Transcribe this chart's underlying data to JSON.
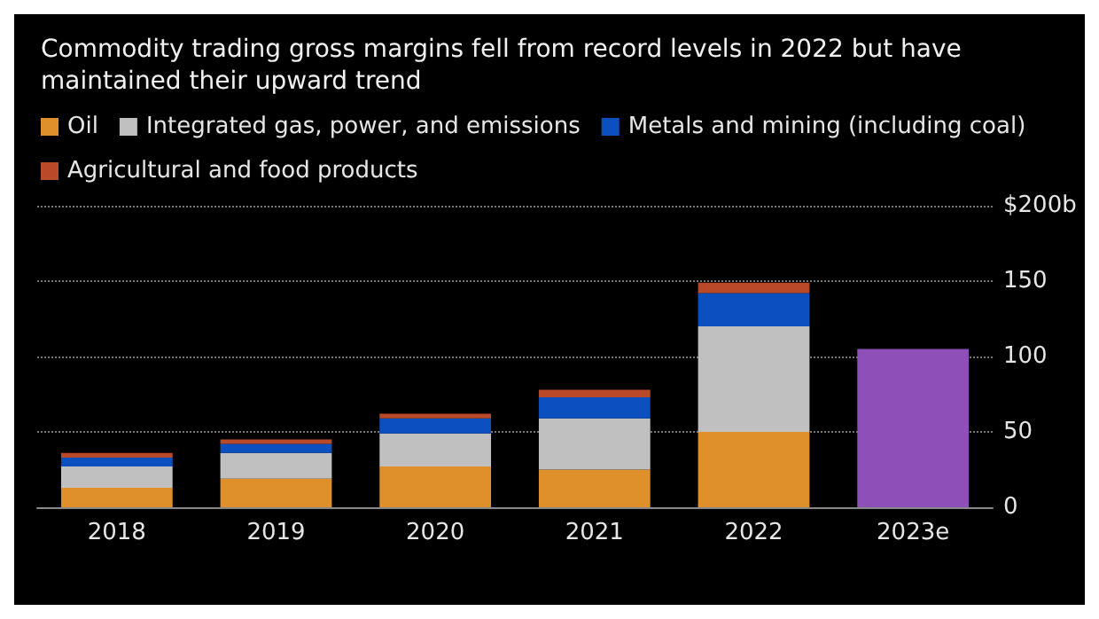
{
  "chart_data": {
    "type": "bar",
    "title": "Commodity trading gross margins fell from record levels in 2022 but have maintained their upward trend",
    "categories": [
      "2018",
      "2019",
      "2020",
      "2021",
      "2022",
      "2023e"
    ],
    "stacked": true,
    "series": [
      {
        "name": "Oil",
        "color": "#e0902a",
        "values": [
          13,
          19,
          27,
          25,
          50,
          null
        ]
      },
      {
        "name": "Integrated gas, power, and emissions",
        "color": "#c0c0c0",
        "values": [
          14,
          17,
          22,
          34,
          70,
          null
        ]
      },
      {
        "name": "Metals and mining (including coal)",
        "color": "#0c50c0",
        "values": [
          6,
          6,
          10,
          14,
          22,
          null
        ]
      },
      {
        "name": "Agricultural and food products",
        "color": "#b84a2a",
        "values": [
          3,
          3,
          3,
          5,
          7,
          null
        ]
      },
      {
        "color": "#8e50b8",
        "values": [
          null,
          null,
          null,
          null,
          null,
          105
        ]
      }
    ],
    "ylim": [
      0,
      200
    ],
    "yticks": [
      0,
      50,
      100,
      150,
      {
        "value": 200,
        "label": "$200b"
      }
    ],
    "grid": "y",
    "legend": "top left"
  }
}
